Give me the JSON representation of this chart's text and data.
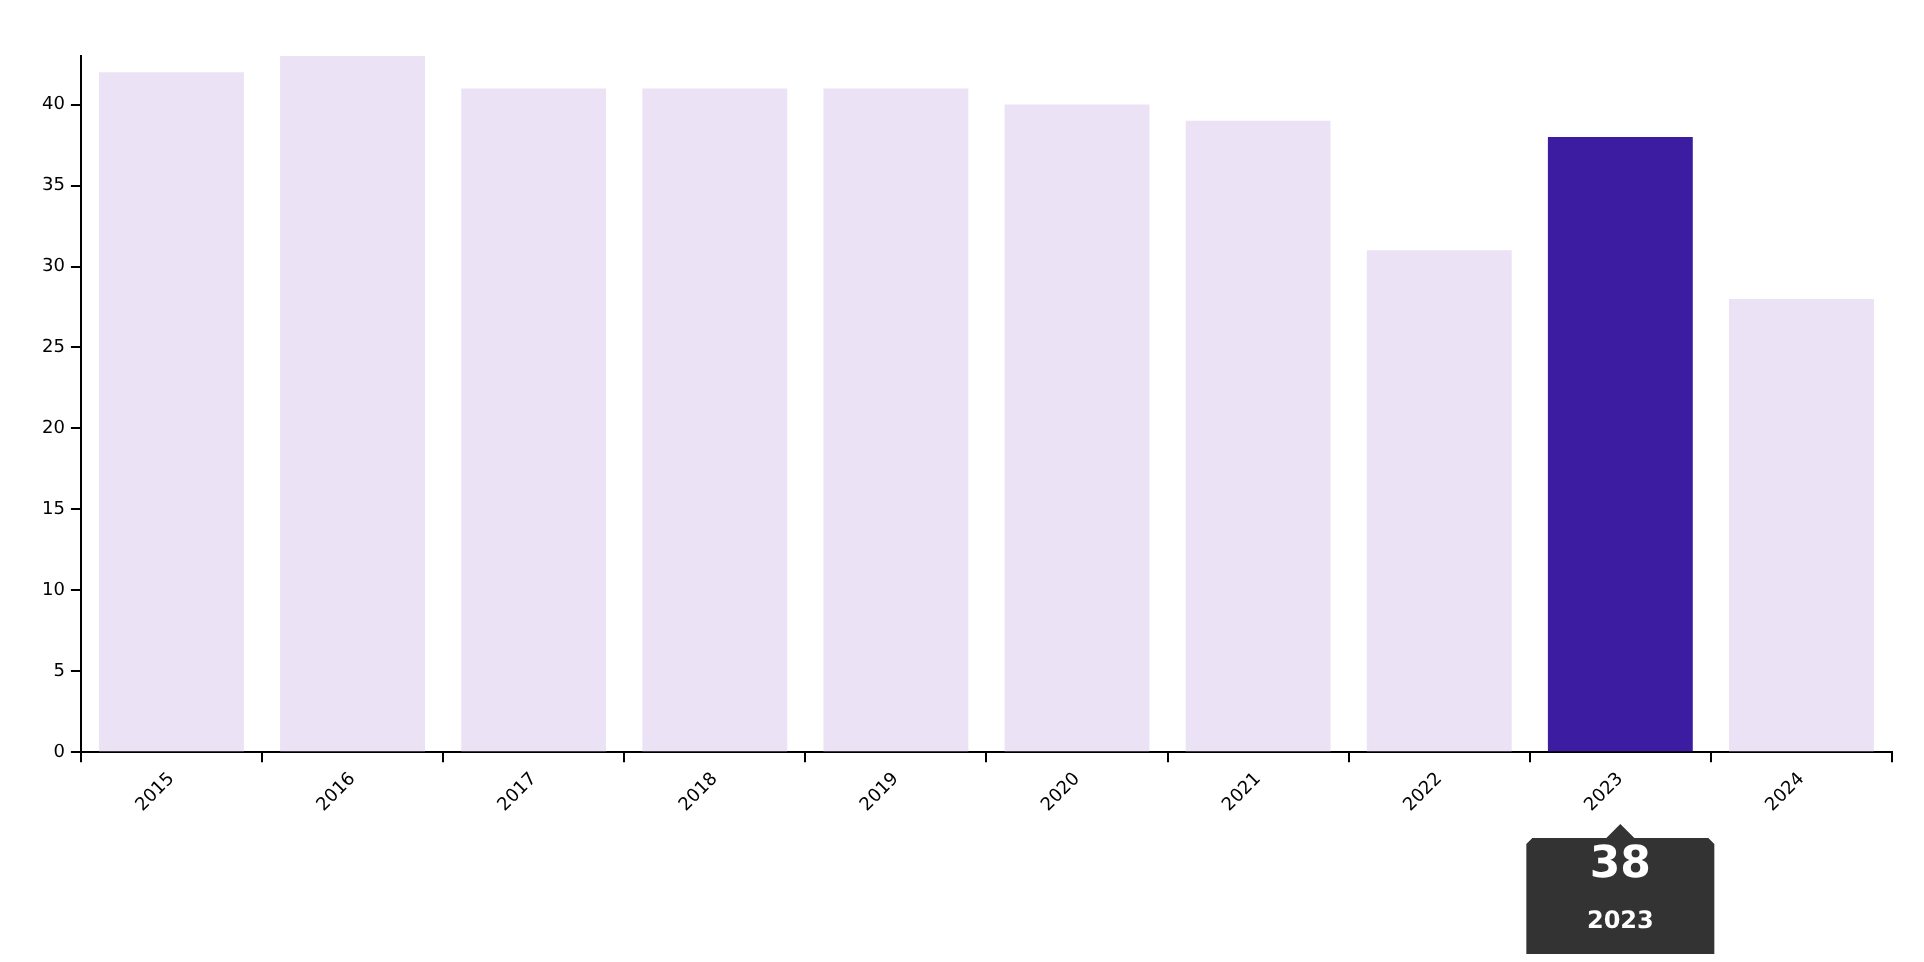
{
  "chart_data": {
    "type": "bar",
    "categories": [
      "2015",
      "2016",
      "2017",
      "2018",
      "2019",
      "2020",
      "2021",
      "2022",
      "2023",
      "2024"
    ],
    "values": [
      42,
      43,
      41,
      41,
      41,
      40,
      39,
      31,
      38,
      28
    ],
    "colors": [
      "#ebe2f5",
      "#ebe2f5",
      "#ebe2f5",
      "#ebe2f5",
      "#ebe2f5",
      "#ebe2f5",
      "#ebe2f5",
      "#ebe2f5",
      "#3c1ca0",
      "#ebe2f5"
    ],
    "value_labels": [
      null,
      null,
      null,
      null,
      null,
      null,
      null,
      null,
      "38",
      null
    ],
    "ylim": [
      0,
      43
    ],
    "yticks": [
      0,
      5,
      10,
      15,
      20,
      25,
      30,
      35,
      40
    ],
    "grid": false,
    "legend": false
  }
}
